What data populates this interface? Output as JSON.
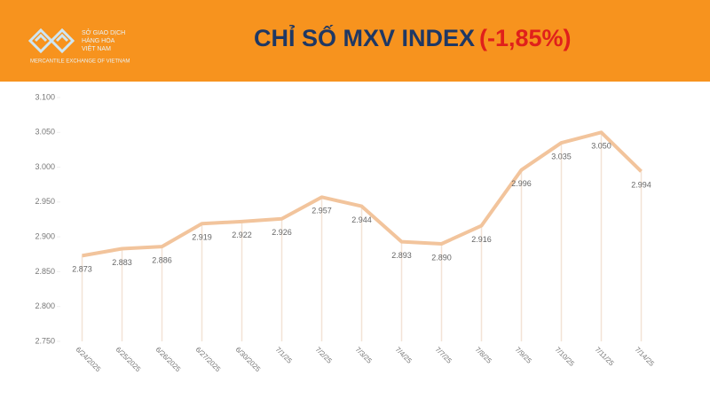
{
  "header": {
    "logo_lines": [
      "SỞ GIAO DỊCH",
      "HÀNG HÓA",
      "VIỆT NAM"
    ],
    "logo_tagline": "MERCANTILE EXCHANGE OF VIETNAM"
  },
  "chart_data": {
    "type": "line",
    "title": "CHỈ SỐ MXV INDEX",
    "annotation": "(-1,85%)",
    "categories": [
      "6/24/2025",
      "6/25/2025",
      "6/26/2025",
      "6/27/2025",
      "6/30/2025",
      "7/1/25",
      "7/2/25",
      "7/3/25",
      "7/4/25",
      "7/7/25",
      "7/8/25",
      "7/9/25",
      "7/10/25",
      "7/11/25",
      "7/14/25"
    ],
    "values": [
      2873,
      2883,
      2886,
      2919,
      2922,
      2926,
      2957,
      2944,
      2893,
      2890,
      2916,
      2996,
      3035,
      3050,
      2994
    ],
    "value_labels": [
      "2.873",
      "2.883",
      "2.886",
      "2.919",
      "2.922",
      "2.926",
      "2.957",
      "2.944",
      "2.893",
      "2.890",
      "2.916",
      "2.996",
      "3.035",
      "3.050",
      "2.994"
    ],
    "color": "#f2c49c",
    "ylim": [
      2750,
      3100
    ],
    "yticks": [
      {
        "value": 2750,
        "label": "2.750"
      },
      {
        "value": 2800,
        "label": "2.800"
      },
      {
        "value": 2850,
        "label": "2.850"
      },
      {
        "value": 2900,
        "label": "2.900"
      },
      {
        "value": 2950,
        "label": "2.950"
      },
      {
        "value": 3000,
        "label": "3.000"
      },
      {
        "value": 3050,
        "label": "3.050"
      },
      {
        "value": 3100,
        "label": "3.100"
      }
    ]
  }
}
